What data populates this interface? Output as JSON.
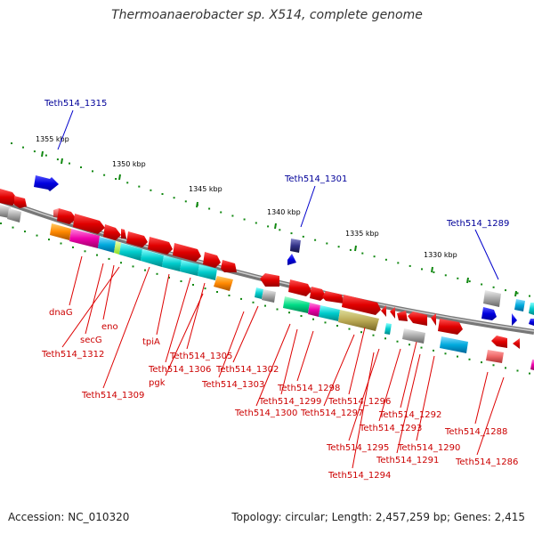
{
  "title": "Thermoanaerobacter sp. X514, complete genome",
  "footer": {
    "accession": "Accession: NC_010320",
    "topology": "Topology: circular; Length: 2,457,259 bp; Genes: 2,415"
  },
  "scale_labels": [
    "1355 kbp",
    "1350 kbp",
    "1345 kbp",
    "1340 kbp",
    "1335 kbp",
    "1330 kbp"
  ],
  "highlighted_loci": [
    "Teth514_1315",
    "Teth514_1301",
    "Teth514_1289"
  ],
  "gene_labels": [
    "dnaG",
    "eno",
    "secG",
    "Teth514_1312",
    "Teth514_1309",
    "tpiA",
    "Teth514_1305",
    "Teth514_1306",
    "pgk",
    "Teth514_1302",
    "Teth514_1303",
    "Teth514_1298",
    "Teth514_1299",
    "Teth514_1296",
    "Teth514_1300",
    "Teth514_1297",
    "Teth514_1292",
    "Teth514_1293",
    "Teth514_1288",
    "Teth514_1295",
    "Teth514_1290",
    "Teth514_1291",
    "Teth514_1286",
    "Teth514_1294"
  ],
  "colors": {
    "forward_gene": "#ee0000",
    "highlight_gene": "#0000ee",
    "locus_label": "#000099",
    "gene_label": "#cc0000",
    "backbone": "#888888",
    "scale_ticks": "#118811"
  }
}
